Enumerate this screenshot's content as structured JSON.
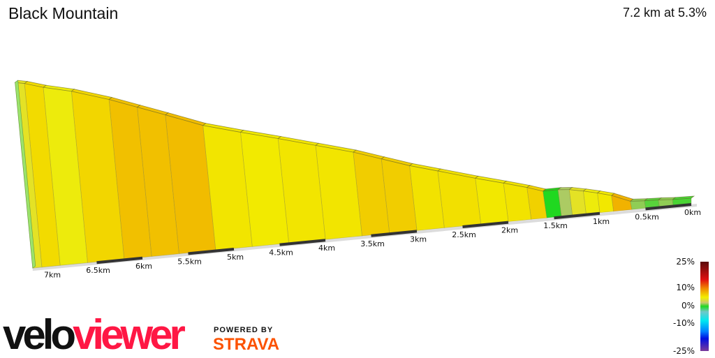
{
  "header": {
    "title": "Black Mountain",
    "summary": "7.2 km at 5.3%"
  },
  "chart_data": {
    "type": "area",
    "title": "Black Mountain",
    "x_unit": "km",
    "x_direction": "reversed",
    "xlim": [
      0,
      7.2
    ],
    "distance_km": [
      0,
      0.2,
      0.35,
      0.5,
      0.65,
      0.85,
      1.0,
      1.15,
      1.3,
      1.42,
      1.58,
      1.75,
      2.0,
      2.3,
      2.7,
      3.0,
      3.3,
      3.6,
      4.0,
      4.4,
      4.8,
      5.2,
      5.6,
      5.9,
      6.2,
      6.6,
      6.9,
      7.1,
      7.2
    ],
    "elevation_m": [
      0,
      1,
      3,
      4,
      6,
      22,
      30,
      37,
      43,
      45,
      45,
      56,
      70,
      86,
      109,
      126,
      146,
      166,
      188,
      210,
      231,
      253,
      283,
      305,
      327,
      352,
      366,
      378,
      382
    ],
    "x_ticks": [
      "0km",
      "0.5km",
      "1km",
      "1.5km",
      "2km",
      "2.5km",
      "3km",
      "3.5km",
      "4km",
      "4.5km",
      "5km",
      "5.5km",
      "6km",
      "6.5km",
      "7km"
    ],
    "legend": {
      "type": "gradient",
      "labels": [
        "25%",
        "10%",
        "0%",
        "-10%",
        "-25%"
      ],
      "placement": "bottom-right",
      "stops": [
        {
          "grade": 25,
          "color": "#5a0a0a"
        },
        {
          "grade": 15,
          "color": "#e01010"
        },
        {
          "grade": 10,
          "color": "#f08a00"
        },
        {
          "grade": 5,
          "color": "#f2ef00"
        },
        {
          "grade": 2,
          "color": "#c8c870"
        },
        {
          "grade": 0,
          "color": "#20d820"
        },
        {
          "grade": -3,
          "color": "#70c8c8"
        },
        {
          "grade": -8,
          "color": "#00e8f0"
        },
        {
          "grade": -14,
          "color": "#0080ff"
        },
        {
          "grade": -18,
          "color": "#0010e0"
        },
        {
          "grade": -25,
          "color": "#7a3a9a"
        }
      ]
    }
  },
  "branding": {
    "logo_left": "velo",
    "logo_right": "viewer",
    "powered_by": "POWERED BY",
    "strava": "STRAVA"
  }
}
